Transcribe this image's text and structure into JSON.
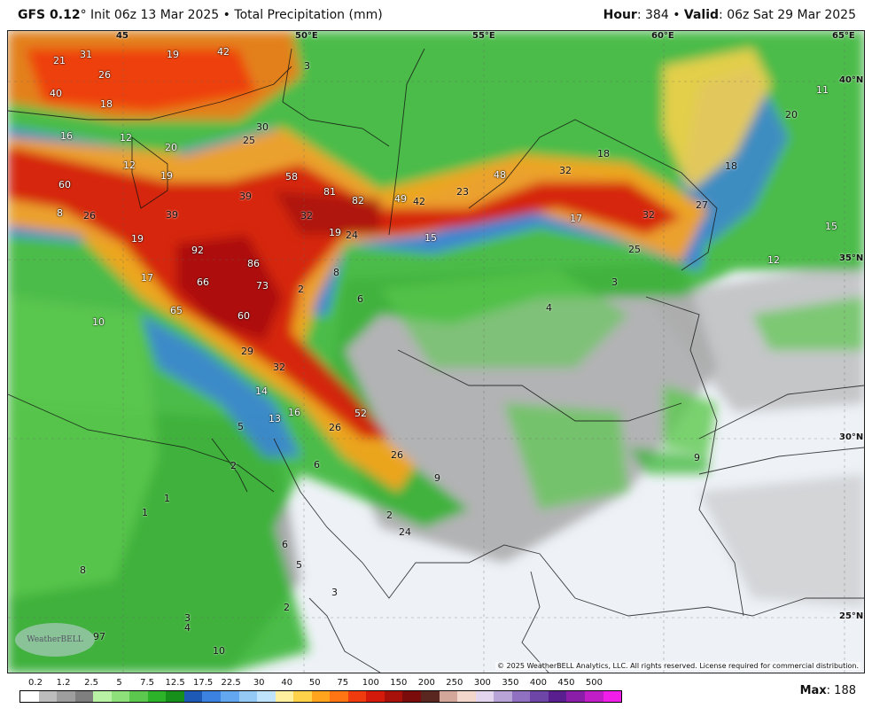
{
  "header": {
    "model": "GFS 0.12",
    "degree": "°",
    "init": "Init 06z 13 Mar 2025",
    "separator": "•",
    "product": "Total Precipitation (mm)",
    "hour_label": "Hour",
    "hour_value": ": 384",
    "valid_label": "Valid",
    "valid_value": ": 06z Sat 29 Mar 2025"
  },
  "axes": {
    "lon": [
      "45",
      "50°E",
      "55°E",
      "60°E",
      "65°E"
    ],
    "lat": [
      "40°N",
      "35°N",
      "30°N",
      "25°N"
    ]
  },
  "values": [
    "21",
    "31",
    "26",
    "19",
    "42",
    "3",
    "40",
    "18",
    "16",
    "12",
    "20",
    "30",
    "25",
    "12",
    "19",
    "58",
    "81",
    "82",
    "49",
    "42",
    "23",
    "48",
    "32",
    "18",
    "18",
    "11",
    "20",
    "60",
    "8",
    "26",
    "39",
    "39",
    "32",
    "19",
    "24",
    "15",
    "17",
    "32",
    "27",
    "15",
    "19",
    "92",
    "86",
    "8",
    "2",
    "6",
    "25",
    "12",
    "3",
    "4",
    "66",
    "73",
    "17",
    "10",
    "65",
    "60",
    "29",
    "32",
    "14",
    "16",
    "52",
    "13",
    "26",
    "5",
    "2",
    "6",
    "26",
    "9",
    "9",
    "1",
    "1",
    "2",
    "24",
    "6",
    "5",
    "8",
    "2",
    "3",
    "4",
    "97",
    "10",
    "3"
  ],
  "copyright": "© 2025 WeatherBELL Analytics, LLC. All rights reserved. License required for commercial distribution.",
  "logo": "WeatherBELL",
  "legend": {
    "ticks": [
      "0.2",
      "1.2",
      "2.5",
      "5",
      "7.5",
      "12.5",
      "17.5",
      "22.5",
      "30",
      "40",
      "50",
      "75",
      "100",
      "150",
      "200",
      "250",
      "300",
      "350",
      "400",
      "450",
      "500"
    ],
    "colors": [
      "#ffffff",
      "#bdbdbd",
      "#9e9e9e",
      "#7f7f7f",
      "#b9f2a4",
      "#8ee07a",
      "#5cc94e",
      "#2db32a",
      "#168f1b",
      "#1e5ab5",
      "#3c82e0",
      "#63a7f0",
      "#94c9f5",
      "#bfe3fa",
      "#fff0a0",
      "#ffd24a",
      "#ffa41c",
      "#ff7514",
      "#ef3b0e",
      "#d41a0a",
      "#a8100a",
      "#7a0c0c",
      "#5a2620",
      "#d3a89a",
      "#f3d6cc",
      "#e4d5ee",
      "#b9a4d8",
      "#9070c0",
      "#6e46a8",
      "#5a1f8e",
      "#8a1ea8",
      "#c21ec8",
      "#f01ee8"
    ],
    "max_label": "Max",
    "max_value": ": 188"
  }
}
